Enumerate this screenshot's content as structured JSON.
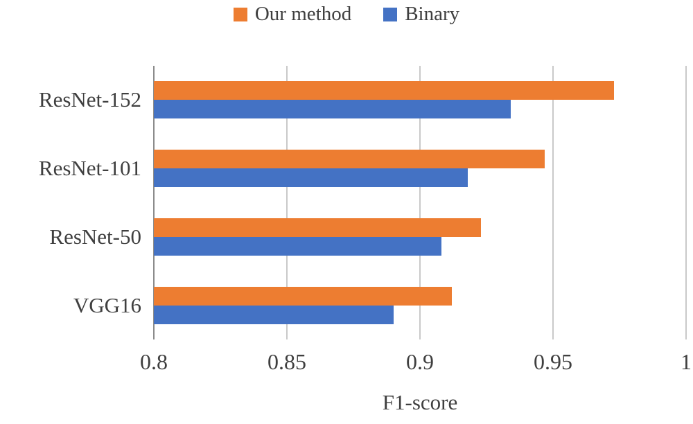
{
  "chart_data": {
    "type": "bar",
    "orientation": "horizontal",
    "categories": [
      "ResNet-152",
      "ResNet-101",
      "ResNet-50",
      "VGG16"
    ],
    "series": [
      {
        "name": "Our method",
        "color": "#ED7D31",
        "values": [
          0.973,
          0.947,
          0.923,
          0.912
        ]
      },
      {
        "name": "Binary",
        "color": "#4472C4",
        "values": [
          0.934,
          0.918,
          0.908,
          0.89
        ]
      }
    ],
    "title": "",
    "xlabel": "F1-score",
    "ylabel": "",
    "xlim": [
      0.8,
      1.0
    ],
    "xticks": [
      0.8,
      0.85,
      0.9,
      0.95,
      1
    ],
    "xtick_labels": [
      "0.8",
      "0.85",
      "0.9",
      "0.95",
      "1"
    ],
    "grid": true,
    "legend_position": "top",
    "colors": {
      "gridline": "#c9c9c9",
      "axis_line": "#8c8c8c",
      "text": "#3f3f3f",
      "background": "#ffffff"
    }
  }
}
